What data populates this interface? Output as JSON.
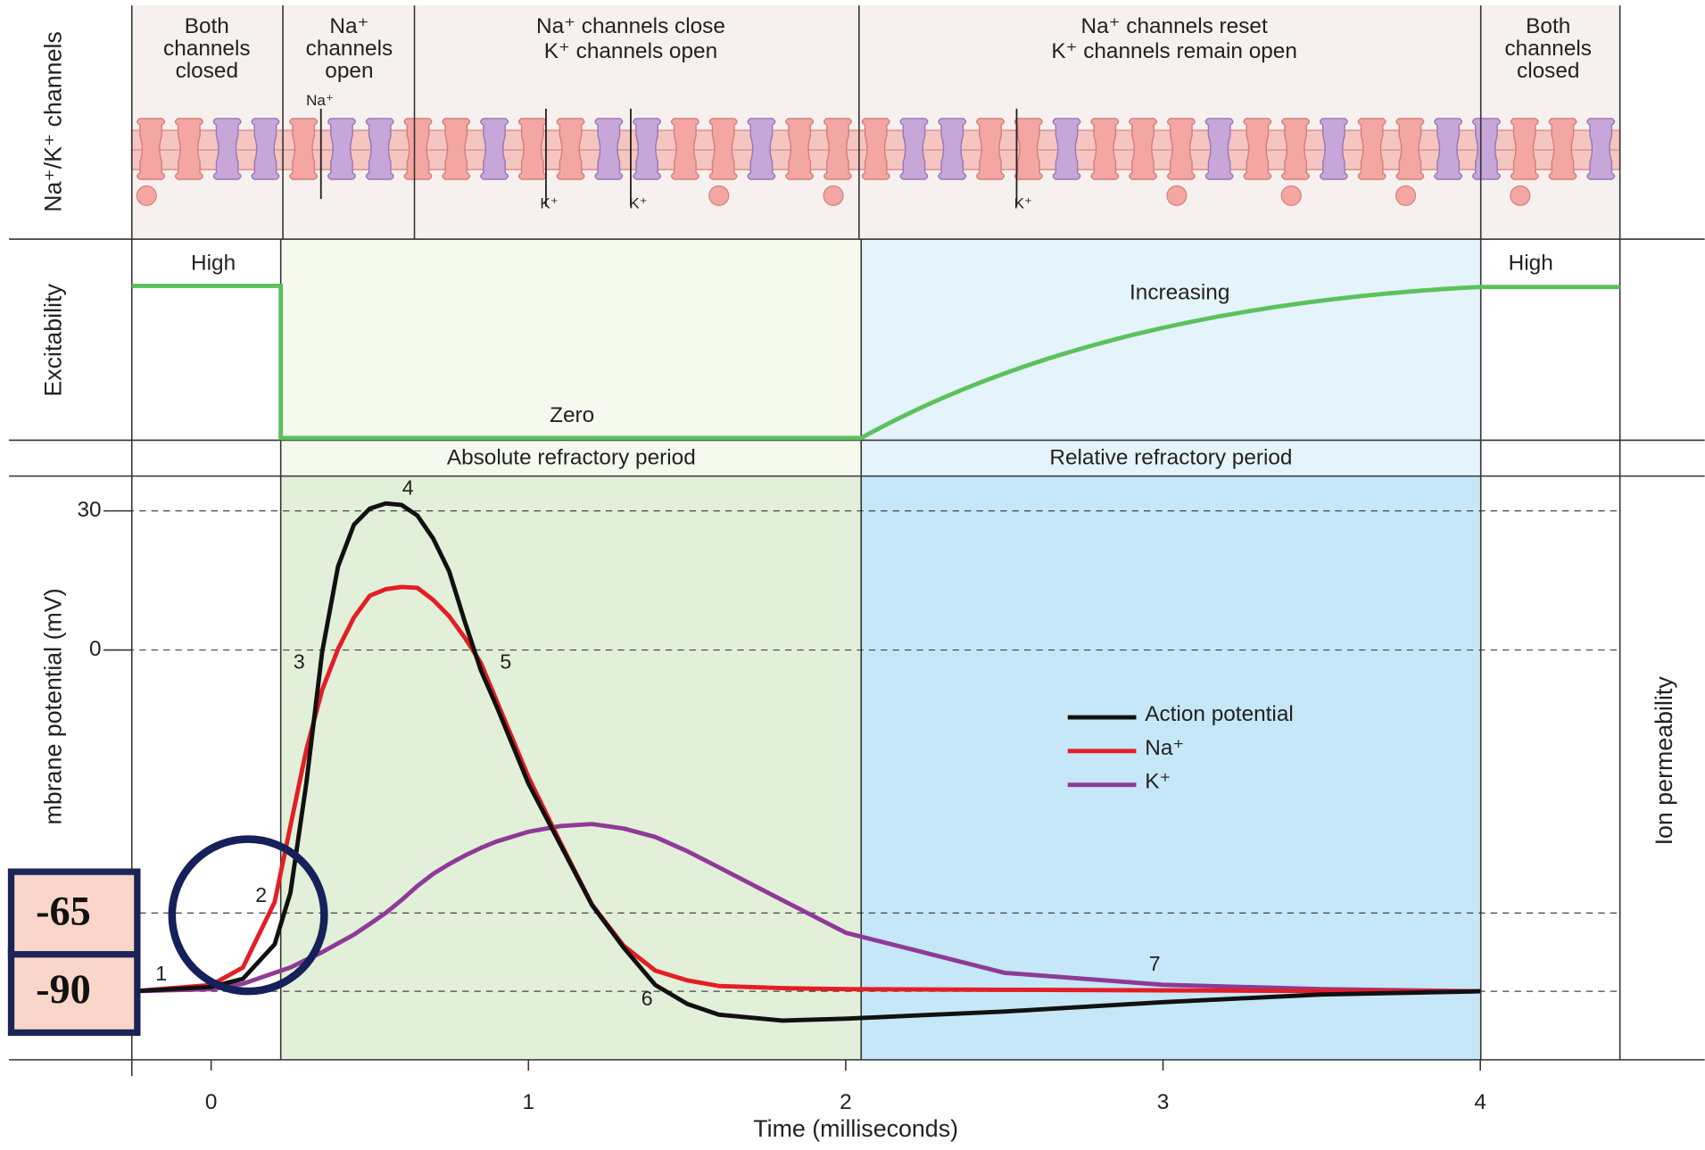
{
  "chart_data": {
    "type": "line",
    "headers": [
      [
        "Both",
        "channels",
        "closed"
      ],
      [
        "Na⁺",
        "channels",
        "open"
      ],
      [
        "Na⁺  channels close",
        "K⁺  channels open"
      ],
      [
        "Na⁺  channels reset",
        "K⁺  channels remain open"
      ],
      [
        "Both",
        "channels",
        "closed"
      ]
    ],
    "channel_labels": [
      "Na⁺",
      "K⁺",
      "K⁺",
      "K⁺"
    ],
    "panel_labels": [
      "Na⁺/K⁺ channels",
      "Excitability"
    ],
    "excitability_labels": [
      "High",
      "Zero",
      "Increasing",
      "High"
    ],
    "periods": [
      {
        "label": "Absolute refractory period",
        "start": 0.22,
        "end": 2.05,
        "color": "#e2efd9"
      },
      {
        "label": "Relative refractory period",
        "start": 2.05,
        "end": 4.0,
        "color": "#c6e7f8"
      }
    ],
    "y_label": "mbrane potential (mV)",
    "y2_label": "Ion permeability",
    "x_label": "Time (milliseconds)",
    "xlim": [
      -0.25,
      4.44
    ],
    "xticks": [
      0,
      1,
      2,
      3,
      4
    ],
    "ylim": [
      -112,
      37.5
    ],
    "yticks": [
      -90,
      -65,
      0,
      30
    ],
    "grid": true,
    "x": [
      -0.25,
      0,
      0.1,
      0.2,
      0.25,
      0.3,
      0.35,
      0.4,
      0.45,
      0.5,
      0.55,
      0.6,
      0.65,
      0.7,
      0.75,
      0.8,
      0.85,
      0.9,
      1.0,
      1.1,
      1.2,
      1.3,
      1.4,
      1.5,
      1.6,
      1.8,
      2.0,
      2.5,
      3.0,
      3.5,
      4.0
    ],
    "series": [
      {
        "name": "Action potential",
        "color": "#111111",
        "values": [
          -90,
          -88.6,
          -86,
          -75,
          -60,
          -33,
          -0.5,
          18,
          27,
          30.5,
          31.6,
          31.3,
          29,
          24,
          17,
          6,
          -5,
          -14,
          -33,
          -48,
          -63,
          -76,
          -88,
          -94,
          -97.5,
          -99.4,
          -98.8,
          -96.5,
          -93.5,
          -91,
          -90
        ]
      },
      {
        "name": "Na⁺",
        "color": "#e31e24",
        "values": [
          -90,
          -88,
          -82.4,
          -62.3,
          -43.5,
          -24.7,
          -9.9,
          0.2,
          7,
          11.7,
          13.1,
          13.6,
          13.4,
          10.8,
          7.3,
          2.6,
          -3.2,
          -12.6,
          -31.4,
          -47.5,
          -62.9,
          -75.4,
          -83.4,
          -86.5,
          -88.3,
          -89,
          -89.3,
          -89.5,
          -89.7,
          -89.9,
          -90
        ]
      },
      {
        "name": "K⁺",
        "color": "#8e3a96",
        "values": [
          -90,
          -89.3,
          -87.6,
          -84.1,
          -82.4,
          -79.9,
          -77.5,
          -74.7,
          -71.9,
          -68.5,
          -65,
          -61.8,
          -58.3,
          -55.3,
          -52.9,
          -50.8,
          -48.9,
          -47.3,
          -44.9,
          -43.5,
          -43,
          -44.1,
          -46.2,
          -49.7,
          -53.7,
          -61.8,
          -71.3,
          -84.1,
          -87.9,
          -89.3,
          -90
        ]
      }
    ],
    "point_labels": [
      "1",
      "2",
      "3",
      "4",
      "5",
      "6",
      "7"
    ]
  }
}
